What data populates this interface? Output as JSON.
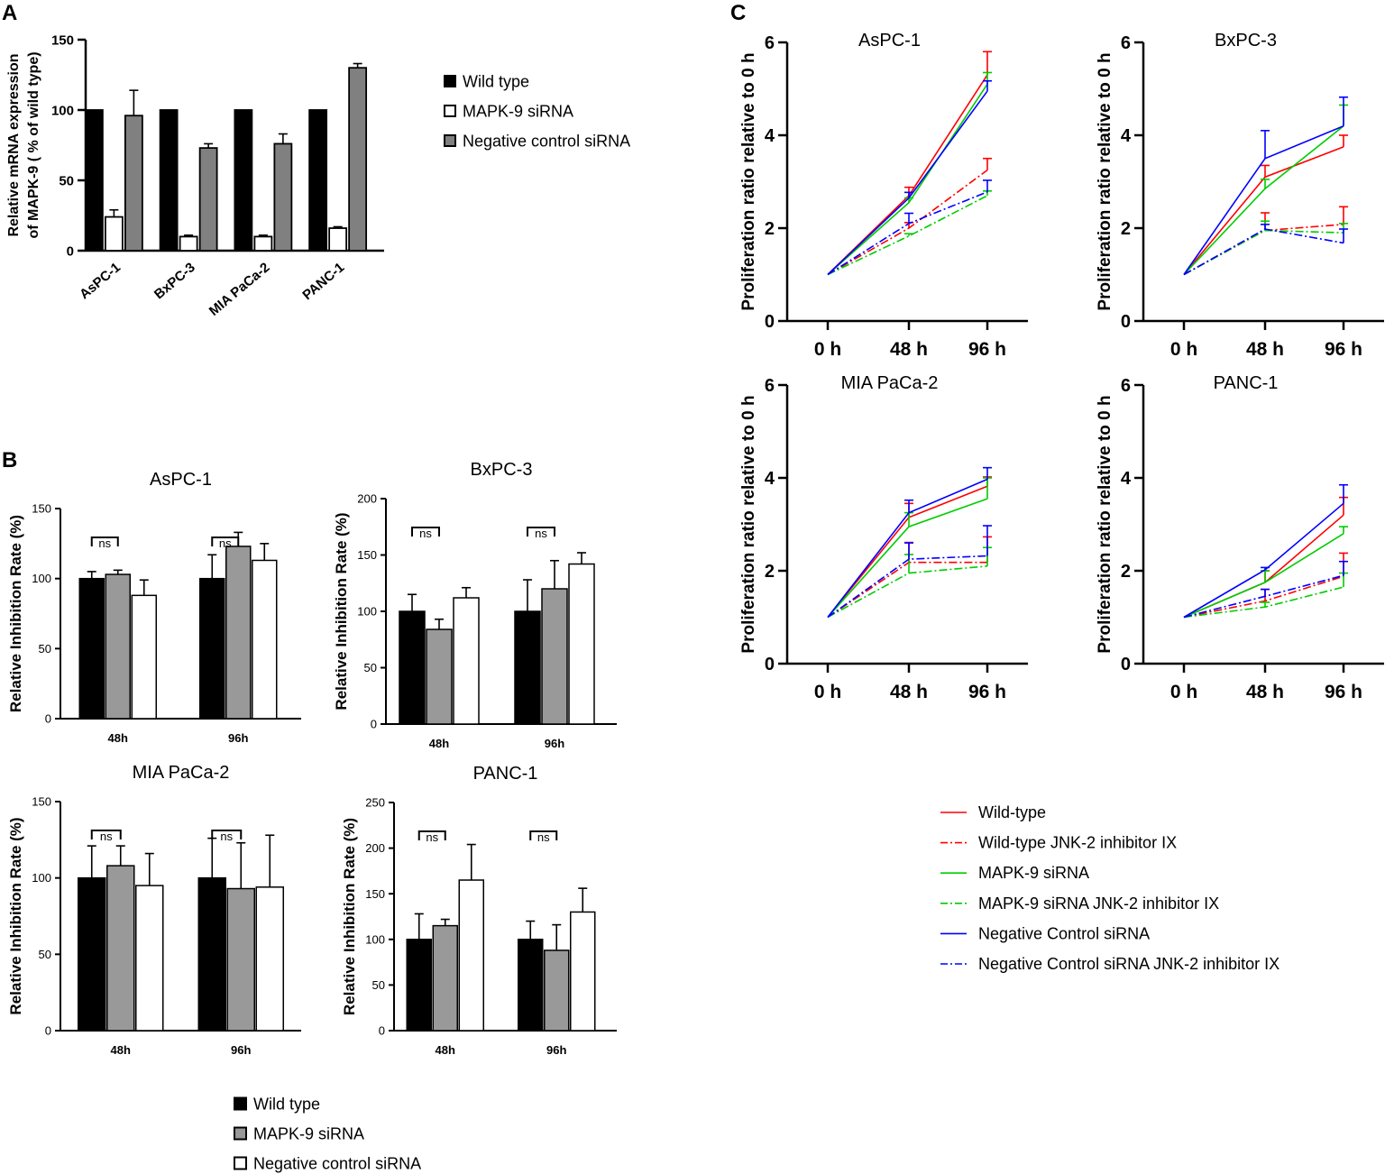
{
  "figure": {
    "panel_labels": [
      "A",
      "B",
      "C"
    ]
  },
  "chart_data": [
    {
      "id": "A",
      "type": "bar",
      "title": "",
      "ylabel_lines": [
        "Relative mRNA expression",
        "of MAPK-9  ( % of wild type)"
      ],
      "xlabel": "",
      "ylim": [
        0,
        150
      ],
      "yticks": [
        0,
        50,
        100,
        150
      ],
      "categories": [
        "AsPC-1",
        "BxPC-3",
        "MIA PaCa-2",
        "PANC-1"
      ],
      "series": [
        {
          "name": "Wild type",
          "fill": "#000000",
          "values": [
            100,
            100,
            100,
            100
          ],
          "errors": [
            0,
            0,
            0,
            0
          ]
        },
        {
          "name": "MAPK-9 siRNA",
          "fill": "#ffffff",
          "values": [
            24,
            10,
            10,
            16
          ],
          "errors": [
            5,
            1,
            1,
            1
          ]
        },
        {
          "name": "Negative control siRNA",
          "fill": "#808080",
          "values": [
            96,
            73,
            76,
            130
          ],
          "errors": [
            18,
            3,
            7,
            3
          ]
        }
      ],
      "legend": "right"
    },
    {
      "id": "B1",
      "type": "bar",
      "title": "AsPC-1",
      "ylabel": "Relative Inhibition Rate (%)",
      "ylim": [
        0,
        150
      ],
      "yticks": [
        0,
        50,
        100,
        150
      ],
      "categories": [
        "48h",
        "96h"
      ],
      "series": [
        {
          "name": "Wild type",
          "fill": "#000000",
          "values": [
            100,
            100
          ],
          "errors": [
            5,
            17
          ]
        },
        {
          "name": "MAPK-9 siRNA",
          "fill": "#999999",
          "values": [
            103,
            123
          ],
          "errors": [
            3,
            10
          ]
        },
        {
          "name": "Negative control siRNA",
          "fill": "#ffffff",
          "values": [
            88,
            113
          ],
          "errors": [
            11,
            12
          ]
        }
      ],
      "annotations": [
        "ns",
        "ns"
      ]
    },
    {
      "id": "B2",
      "type": "bar",
      "title": "BxPC-3",
      "ylabel": "Relative Inhibition Rate (%)",
      "ylim": [
        0,
        200
      ],
      "yticks": [
        0,
        50,
        100,
        150,
        200
      ],
      "categories": [
        "48h",
        "96h"
      ],
      "series": [
        {
          "name": "Wild type",
          "fill": "#000000",
          "values": [
            100,
            100
          ],
          "errors": [
            15,
            28
          ]
        },
        {
          "name": "MAPK-9 siRNA",
          "fill": "#999999",
          "values": [
            84,
            120
          ],
          "errors": [
            9,
            25
          ]
        },
        {
          "name": "Negative control siRNA",
          "fill": "#ffffff",
          "values": [
            112,
            142
          ],
          "errors": [
            9,
            10
          ]
        }
      ],
      "annotations": [
        "ns",
        "ns"
      ]
    },
    {
      "id": "B3",
      "type": "bar",
      "title": "MIA PaCa-2",
      "ylabel": "Relative Inhibition Rate (%)",
      "ylim": [
        0,
        150
      ],
      "yticks": [
        0,
        50,
        100,
        150
      ],
      "categories": [
        "48h",
        "96h"
      ],
      "series": [
        {
          "name": "Wild type",
          "fill": "#000000",
          "values": [
            100,
            100
          ],
          "errors": [
            21,
            26
          ]
        },
        {
          "name": "MAPK-9 siRNA",
          "fill": "#999999",
          "values": [
            108,
            93
          ],
          "errors": [
            13,
            30
          ]
        },
        {
          "name": "Negative control siRNA",
          "fill": "#ffffff",
          "values": [
            95,
            94
          ],
          "errors": [
            21,
            34
          ]
        }
      ],
      "annotations": [
        "ns",
        "ns"
      ]
    },
    {
      "id": "B4",
      "type": "bar",
      "title": "PANC-1",
      "ylabel": "Relative Inhibition Rate (%)",
      "ylim": [
        0,
        250
      ],
      "yticks": [
        0,
        50,
        100,
        150,
        200,
        250
      ],
      "categories": [
        "48h",
        "96h"
      ],
      "series": [
        {
          "name": "Wild type",
          "fill": "#000000",
          "values": [
            100,
            100
          ],
          "errors": [
            28,
            20
          ]
        },
        {
          "name": "MAPK-9 siRNA",
          "fill": "#999999",
          "values": [
            115,
            88
          ],
          "errors": [
            7,
            28
          ]
        },
        {
          "name": "Negative control siRNA",
          "fill": "#ffffff",
          "values": [
            165,
            130
          ],
          "errors": [
            39,
            26
          ]
        }
      ],
      "annotations": [
        "ns",
        "ns"
      ]
    },
    {
      "id": "C1",
      "type": "line",
      "title": "AsPC-1",
      "ylabel": "Proliferation ratio relative to 0 h",
      "ylim": [
        0,
        6
      ],
      "yticks": [
        0,
        2,
        4,
        6
      ],
      "x": [
        "0 h",
        "48 h",
        "96 h"
      ],
      "series": [
        {
          "name": "Wild-type",
          "color": "#ff0000",
          "dash": "solid",
          "values": [
            1,
            2.7,
            5.3
          ],
          "errors": [
            0,
            0.18,
            0.5
          ]
        },
        {
          "name": "Wild-type JNK-2 inhibitor IX",
          "color": "#ff0000",
          "dash": "dashdot",
          "values": [
            1,
            2.0,
            3.25
          ],
          "errors": [
            0,
            0.12,
            0.25
          ]
        },
        {
          "name": "MAPK-9 siRNA",
          "color": "#00cc00",
          "dash": "solid",
          "values": [
            1,
            2.55,
            5.1
          ],
          "errors": [
            0,
            0.1,
            0.25
          ]
        },
        {
          "name": "MAPK-9 siRNA JNK-2 inhibitor IX",
          "color": "#00cc00",
          "dash": "dashdot",
          "values": [
            1,
            1.83,
            2.7
          ],
          "errors": [
            0,
            0.05,
            0.1
          ]
        },
        {
          "name": "Negative Control siRNA",
          "color": "#0000ff",
          "dash": "solid",
          "values": [
            1,
            2.65,
            4.95
          ],
          "errors": [
            0,
            0.12,
            0.22
          ]
        },
        {
          "name": "Negative Control siRNA JNK-2 inhibitor IX",
          "color": "#0000ff",
          "dash": "dashdot",
          "values": [
            1,
            2.1,
            2.78
          ],
          "errors": [
            0,
            0.22,
            0.25
          ]
        }
      ]
    },
    {
      "id": "C2",
      "type": "line",
      "title": "BxPC-3",
      "ylabel": "Proliferation ratio relative to 0 h",
      "ylim": [
        0,
        6
      ],
      "yticks": [
        0,
        2,
        4,
        6
      ],
      "x": [
        "0 h",
        "48 h",
        "96 h"
      ],
      "series": [
        {
          "name": "Wild-type",
          "color": "#ff0000",
          "dash": "solid",
          "values": [
            1,
            3.1,
            3.75
          ],
          "errors": [
            0,
            0.25,
            0.25
          ]
        },
        {
          "name": "Wild-type JNK-2 inhibitor IX",
          "color": "#ff0000",
          "dash": "dashdot",
          "values": [
            1,
            1.95,
            2.08
          ],
          "errors": [
            0,
            0.38,
            0.38
          ]
        },
        {
          "name": "MAPK-9 siRNA",
          "color": "#00cc00",
          "dash": "solid",
          "values": [
            1,
            2.85,
            4.2
          ],
          "errors": [
            0,
            0.2,
            0.45
          ]
        },
        {
          "name": "MAPK-9 siRNA JNK-2 inhibitor IX",
          "color": "#00cc00",
          "dash": "dashdot",
          "values": [
            1,
            1.95,
            1.9
          ],
          "errors": [
            0,
            0.2,
            0.2
          ]
        },
        {
          "name": "Negative Control siRNA",
          "color": "#0000ff",
          "dash": "solid",
          "values": [
            1,
            3.5,
            4.2
          ],
          "errors": [
            0,
            0.6,
            0.62
          ]
        },
        {
          "name": "Negative Control siRNA JNK-2 inhibitor IX",
          "color": "#0000ff",
          "dash": "dashdot",
          "values": [
            1,
            1.98,
            1.68
          ],
          "errors": [
            0,
            0.1,
            0.3
          ]
        }
      ]
    },
    {
      "id": "C3",
      "type": "line",
      "title": "MIA PaCa-2",
      "ylabel": "Proliferation ratio relative to 0 h",
      "ylim": [
        0,
        6
      ],
      "yticks": [
        0,
        2,
        4,
        6
      ],
      "x": [
        "0 h",
        "48 h",
        "96 h"
      ],
      "series": [
        {
          "name": "Wild-type",
          "color": "#ff0000",
          "dash": "solid",
          "values": [
            1,
            3.15,
            3.82
          ],
          "errors": [
            0,
            0.3,
            0.2
          ]
        },
        {
          "name": "Wild-type JNK-2 inhibitor IX",
          "color": "#ff0000",
          "dash": "dashdot",
          "values": [
            1,
            2.18,
            2.18
          ],
          "errors": [
            0,
            0.43,
            0.55
          ]
        },
        {
          "name": "MAPK-9 siRNA",
          "color": "#00cc00",
          "dash": "solid",
          "values": [
            1,
            2.95,
            3.55
          ],
          "errors": [
            0,
            0.3,
            0.45
          ]
        },
        {
          "name": "MAPK-9 siRNA JNK-2 inhibitor IX",
          "color": "#00cc00",
          "dash": "dashdot",
          "values": [
            1,
            1.95,
            2.1
          ],
          "errors": [
            0,
            0.4,
            0.4
          ]
        },
        {
          "name": "Negative Control siRNA",
          "color": "#0000ff",
          "dash": "solid",
          "values": [
            1,
            3.25,
            3.97
          ],
          "errors": [
            0,
            0.27,
            0.25
          ]
        },
        {
          "name": "Negative Control siRNA JNK-2 inhibitor IX",
          "color": "#0000ff",
          "dash": "dashdot",
          "values": [
            1,
            2.25,
            2.32
          ],
          "errors": [
            0,
            0.35,
            0.65
          ]
        }
      ]
    },
    {
      "id": "C4",
      "type": "line",
      "title": "PANC-1",
      "ylabel": "Proliferation ratio relative to 0 h",
      "ylim": [
        0,
        6
      ],
      "yticks": [
        0,
        2,
        4,
        6
      ],
      "x": [
        "0 h",
        "48 h",
        "96 h"
      ],
      "series": [
        {
          "name": "Wild-type",
          "color": "#ff0000",
          "dash": "solid",
          "values": [
            1,
            1.75,
            3.2
          ],
          "errors": [
            0,
            0.25,
            0.38
          ]
        },
        {
          "name": "Wild-type JNK-2 inhibitor IX",
          "color": "#ff0000",
          "dash": "dashdot",
          "values": [
            1,
            1.35,
            1.88
          ],
          "errors": [
            0,
            0.25,
            0.5
          ]
        },
        {
          "name": "MAPK-9 siRNA",
          "color": "#00cc00",
          "dash": "solid",
          "values": [
            1,
            1.75,
            2.8
          ],
          "errors": [
            0,
            0.25,
            0.15
          ]
        },
        {
          "name": "MAPK-9 siRNA JNK-2 inhibitor IX",
          "color": "#00cc00",
          "dash": "dashdot",
          "values": [
            1,
            1.22,
            1.65
          ],
          "errors": [
            0,
            0.1,
            0.3
          ]
        },
        {
          "name": "Negative Control siRNA",
          "color": "#0000ff",
          "dash": "solid",
          "values": [
            1,
            2.02,
            3.45
          ],
          "errors": [
            0,
            0.05,
            0.4
          ]
        },
        {
          "name": "Negative Control siRNA JNK-2 inhibitor IX",
          "color": "#0000ff",
          "dash": "dashdot",
          "values": [
            1,
            1.45,
            1.9
          ],
          "errors": [
            0,
            0.15,
            0.3
          ]
        }
      ]
    }
  ],
  "legends": {
    "A": [
      {
        "label": "Wild type",
        "fill": "#000000"
      },
      {
        "label": "MAPK-9 siRNA",
        "fill": "#ffffff"
      },
      {
        "label": "Negative control siRNA",
        "fill": "#808080"
      }
    ],
    "B": [
      {
        "label": "Wild type",
        "fill": "#000000"
      },
      {
        "label": "MAPK-9 siRNA",
        "fill": "#999999"
      },
      {
        "label": "Negative control siRNA",
        "fill": "#ffffff"
      }
    ],
    "C": [
      {
        "label": "Wild-type",
        "color": "#ff0000",
        "dash": "solid"
      },
      {
        "label": "Wild-type JNK-2 inhibitor IX",
        "color": "#ff0000",
        "dash": "dashdot"
      },
      {
        "label": "MAPK-9 siRNA",
        "color": "#00cc00",
        "dash": "solid"
      },
      {
        "label": "MAPK-9 siRNA JNK-2 inhibitor IX",
        "color": "#00cc00",
        "dash": "dashdot"
      },
      {
        "label": "Negative Control siRNA",
        "color": "#0000ff",
        "dash": "solid"
      },
      {
        "label": "Negative Control siRNA JNK-2 inhibitor IX",
        "color": "#0000ff",
        "dash": "dashdot"
      }
    ]
  }
}
